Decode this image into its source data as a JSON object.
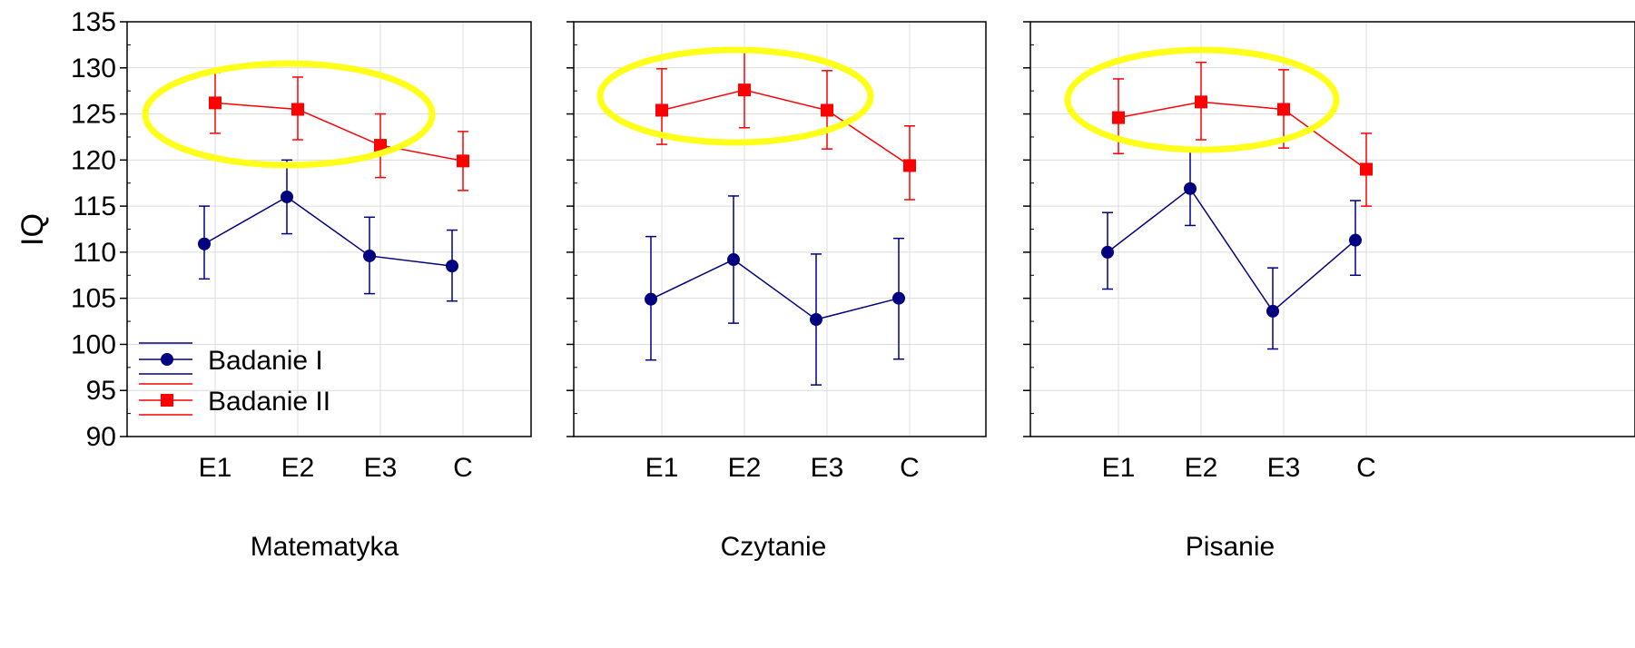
{
  "chart_data": [
    {
      "type": "line",
      "xlabel": "Matematyka",
      "ylabel": "IQ",
      "categories": [
        "E1",
        "E2",
        "E3",
        "C"
      ],
      "ylim": [
        90,
        135
      ],
      "yticks": [
        90,
        95,
        100,
        105,
        110,
        115,
        120,
        125,
        130,
        135
      ],
      "grid": true,
      "legend_position": "bottom-left",
      "highlight": "yellow ellipse around Badanie II E1–E3",
      "series": [
        {
          "name": "Badanie I",
          "color": "#000080",
          "marker": "circle",
          "values": [
            110.9,
            116.0,
            109.6,
            108.5
          ],
          "err_low": [
            107.1,
            112.0,
            105.5,
            104.7
          ],
          "err_high": [
            115.0,
            120.0,
            113.8,
            112.4
          ]
        },
        {
          "name": "Badanie II",
          "color": "#ff0000",
          "marker": "square",
          "values": [
            126.2,
            125.5,
            121.6,
            119.9
          ],
          "err_low": [
            122.9,
            122.2,
            118.1,
            116.7
          ],
          "err_high": [
            129.5,
            129.0,
            125.0,
            123.1
          ]
        }
      ]
    },
    {
      "type": "line",
      "xlabel": "Czytanie",
      "categories": [
        "E1",
        "E2",
        "E3",
        "C"
      ],
      "ylim": [
        90,
        135
      ],
      "grid": true,
      "highlight": "yellow ellipse around Badanie II E1–E3",
      "series": [
        {
          "name": "Badanie I",
          "color": "#000080",
          "marker": "circle",
          "values": [
            104.9,
            109.2,
            102.7,
            105.0
          ],
          "err_low": [
            98.3,
            102.3,
            95.6,
            98.4
          ],
          "err_high": [
            111.7,
            116.1,
            109.8,
            111.5
          ]
        },
        {
          "name": "Badanie II",
          "color": "#ff0000",
          "marker": "square",
          "values": [
            125.4,
            127.6,
            125.4,
            119.4
          ],
          "err_low": [
            121.7,
            123.5,
            121.2,
            115.7
          ],
          "err_high": [
            129.9,
            131.7,
            129.7,
            123.7
          ]
        }
      ]
    },
    {
      "type": "line",
      "xlabel": "Pisanie",
      "categories": [
        "E1",
        "E2",
        "E3",
        "C"
      ],
      "ylim": [
        90,
        135
      ],
      "grid": true,
      "highlight": "yellow ellipse around Badanie II E1–E3",
      "series": [
        {
          "name": "Badanie I",
          "color": "#000080",
          "marker": "circle",
          "values": [
            110.0,
            116.9,
            103.6,
            111.3
          ],
          "err_low": [
            106.0,
            112.9,
            99.5,
            107.5
          ],
          "err_high": [
            114.3,
            121.0,
            108.3,
            115.6
          ]
        },
        {
          "name": "Badanie II",
          "color": "#ff0000",
          "marker": "square",
          "values": [
            124.6,
            126.3,
            125.5,
            119.0
          ],
          "err_low": [
            120.7,
            122.2,
            121.3,
            115.0
          ],
          "err_high": [
            128.8,
            130.6,
            129.8,
            122.9
          ]
        }
      ]
    }
  ]
}
